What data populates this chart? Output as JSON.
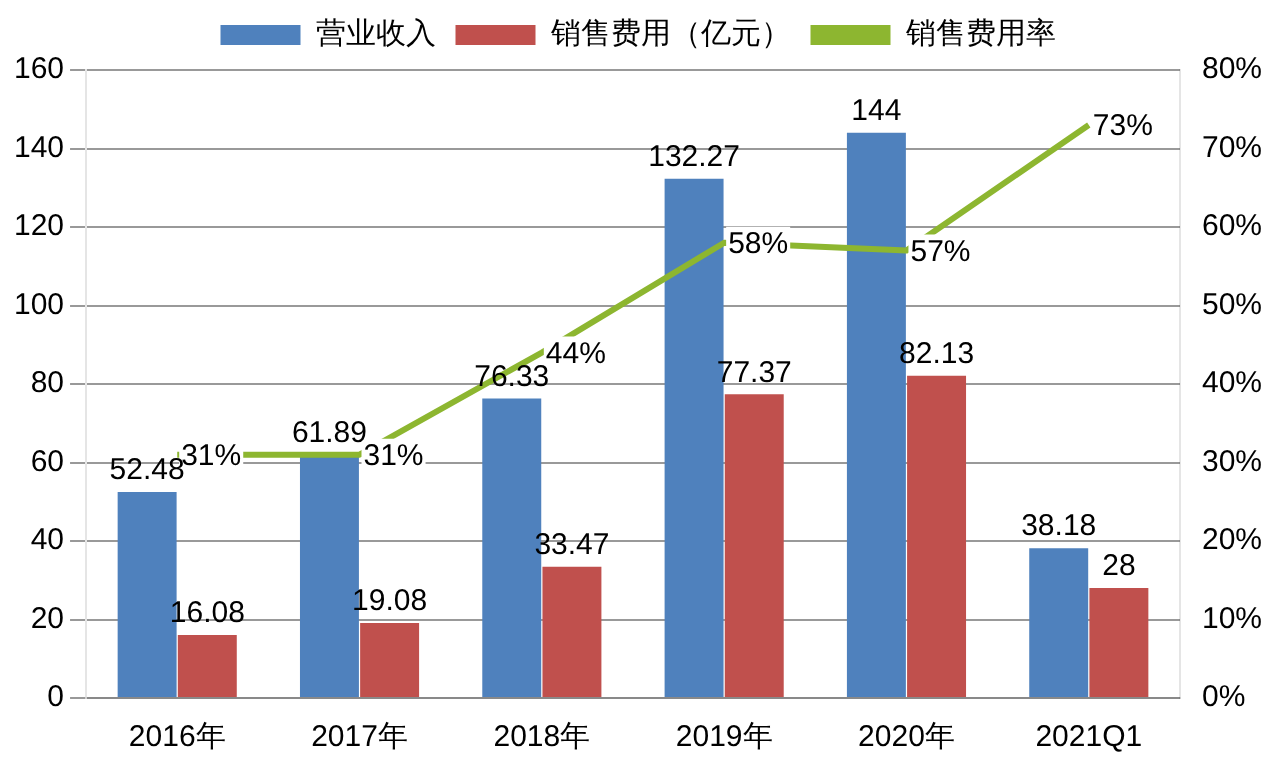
{
  "chart_data": {
    "type": "bar",
    "categories": [
      "2016年",
      "2017年",
      "2018年",
      "2019年",
      "2020年",
      "2021Q1"
    ],
    "series": [
      {
        "name": "营业收入",
        "color": "#4f81bd",
        "values": [
          52.48,
          61.89,
          76.33,
          132.27,
          144,
          38.18
        ]
      },
      {
        "name": "销售费用（亿元）",
        "color": "#c0504d",
        "values": [
          16.08,
          19.08,
          33.47,
          77.37,
          82.13,
          28
        ]
      },
      {
        "name": "销售费用率",
        "type": "line",
        "axis": "y2",
        "color": "#8db630",
        "values": [
          31,
          31,
          44,
          58,
          57,
          73
        ],
        "value_labels": [
          "31%",
          "31%",
          "44%",
          "58%",
          "57%",
          "73%"
        ]
      }
    ],
    "ylim": [
      0,
      160
    ],
    "yticks": [
      0,
      20,
      40,
      60,
      80,
      100,
      120,
      140,
      160
    ],
    "y2lim": [
      0,
      80
    ],
    "y2ticks": [
      {
        "value": 0,
        "label": "0%"
      },
      {
        "value": 10,
        "label": "10%"
      },
      {
        "value": 20,
        "label": "20%"
      },
      {
        "value": 30,
        "label": "30%"
      },
      {
        "value": 40,
        "label": "40%"
      },
      {
        "value": 50,
        "label": "50%"
      },
      {
        "value": 60,
        "label": "60%"
      },
      {
        "value": 70,
        "label": "70%"
      },
      {
        "value": 80,
        "label": "80%"
      }
    ],
    "grid": "y",
    "legend": "top",
    "marker": "none",
    "line_style": "solid",
    "data_labels": true
  }
}
